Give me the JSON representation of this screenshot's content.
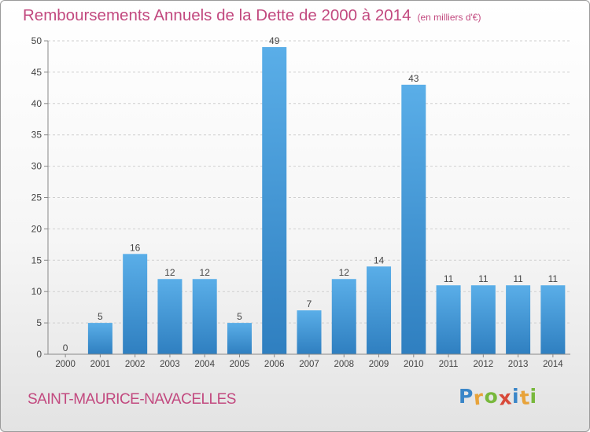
{
  "title": "Remboursements Annuels de la Dette de 2000 à 2014",
  "unit_note": "(en milliers d'€)",
  "commune": "SAINT-MAURICE-NAVACELLES",
  "brand": {
    "letters": [
      "P",
      "r",
      "o",
      "x",
      "i",
      "t",
      "i"
    ],
    "colors": [
      "#3a86c8",
      "#e8a33a",
      "#78b83c",
      "#d84a3a",
      "#3a86c8",
      "#e8a33a",
      "#78b83c"
    ]
  },
  "colors": {
    "bar_top": "#5aaee8",
    "bar_bottom": "#2f7fc0",
    "title": "#c2497f",
    "grid": "#cfcfcf"
  },
  "chart_data": {
    "type": "bar",
    "categories": [
      "2000",
      "2001",
      "2002",
      "2003",
      "2004",
      "2005",
      "2006",
      "2007",
      "2008",
      "2009",
      "2010",
      "2011",
      "2012",
      "2013",
      "2014"
    ],
    "values": [
      0,
      5,
      16,
      12,
      12,
      5,
      49,
      7,
      12,
      14,
      43,
      11,
      11,
      11,
      11
    ],
    "ylim": [
      0,
      50
    ],
    "yticks": [
      0,
      5,
      10,
      15,
      20,
      25,
      30,
      35,
      40,
      45,
      50
    ],
    "grid": "horizontal-dashed",
    "xlabel": "",
    "ylabel": ""
  }
}
